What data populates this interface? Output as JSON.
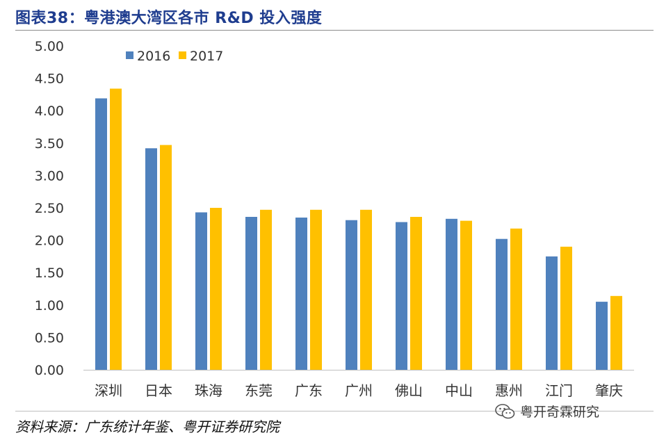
{
  "header": {
    "title": "图表38：粤港澳大湾区各市 R&D 投入强度"
  },
  "footer": {
    "source": "资料来源：广东统计年鉴、粤开证券研究院",
    "watermark": "粤开奇霖研究",
    "watermark_icon": "wechat-icon"
  },
  "chart_data": {
    "type": "bar",
    "title": "图表38：粤港澳大湾区各市 R&D 投入强度",
    "xlabel": "",
    "ylabel": "",
    "categories": [
      "深圳",
      "日本",
      "珠海",
      "东莞",
      "广东",
      "广州",
      "佛山",
      "中山",
      "惠州",
      "江门",
      "肇庆"
    ],
    "series": [
      {
        "name": "2016",
        "color": "#4f81bd",
        "values": [
          4.19,
          3.42,
          2.43,
          2.36,
          2.35,
          2.31,
          2.28,
          2.33,
          2.02,
          1.75,
          1.05
        ]
      },
      {
        "name": "2017",
        "color": "#ffc000",
        "values": [
          4.34,
          3.47,
          2.5,
          2.47,
          2.47,
          2.47,
          2.36,
          2.3,
          2.18,
          1.9,
          1.14
        ]
      }
    ],
    "ylim": [
      0,
      5
    ],
    "yticks": [
      "0.00",
      "0.50",
      "1.00",
      "1.50",
      "2.00",
      "2.50",
      "3.00",
      "3.50",
      "4.00",
      "4.50",
      "5.00"
    ],
    "grid": false,
    "legend": "top-left"
  }
}
